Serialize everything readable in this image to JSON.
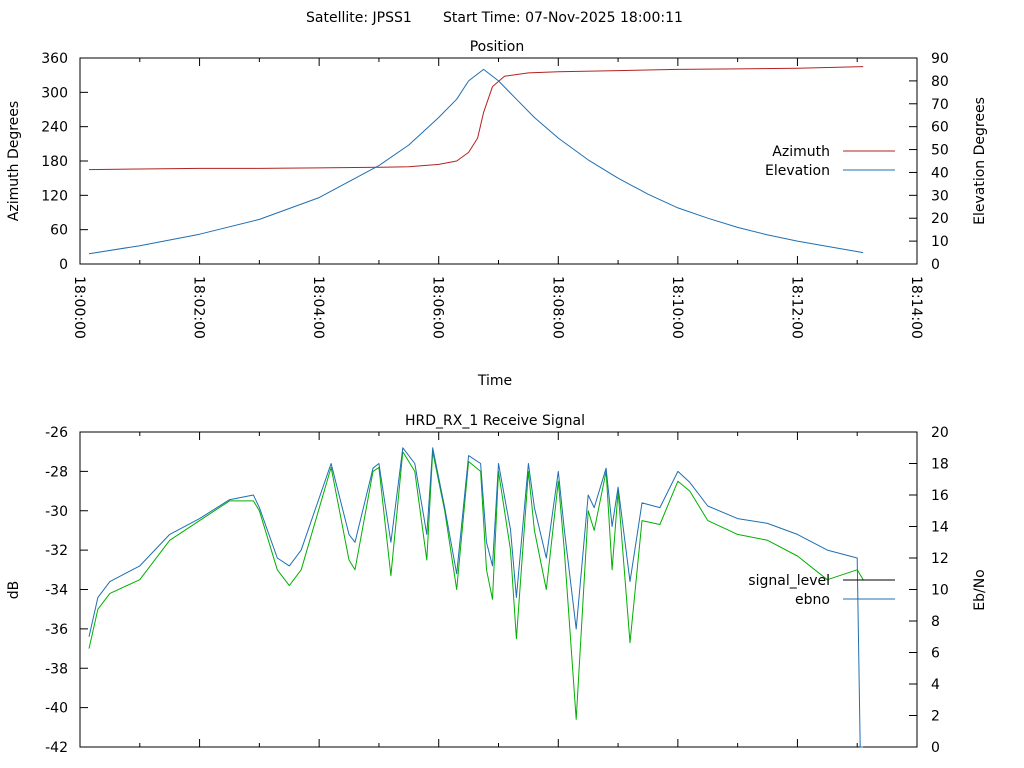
{
  "header": {
    "satellite_label": "Satellite: JPSS1",
    "start_time_label": "Start Time: 07-Nov-2025 18:00:11"
  },
  "colors": {
    "azimuth": "#b22222",
    "elevation": "#1f6fb2",
    "signal_level": "#00b000",
    "ebno": "#1f6fb2",
    "axis": "#000000"
  },
  "chart_data": [
    {
      "type": "line",
      "title": "Position",
      "xlabel": "Time",
      "ylabel": "Azimuth Degrees",
      "y2label": "Elevation Degrees",
      "xlim_minutes": [
        0,
        14
      ],
      "ylim": [
        0,
        360
      ],
      "y2lim": [
        0,
        90
      ],
      "x_tick_labels": [
        "18:00:00",
        "18:02:00",
        "18:04:00",
        "18:06:00",
        "18:08:00",
        "18:10:00",
        "18:12:00",
        "18:14:00"
      ],
      "y_tick_labels": [
        "0",
        "60",
        "120",
        "180",
        "240",
        "300",
        "360"
      ],
      "y2_tick_labels": [
        "0",
        "10",
        "20",
        "30",
        "40",
        "50",
        "60",
        "70",
        "80",
        "90"
      ],
      "legend_position": "right",
      "series": [
        {
          "name": "Azimuth",
          "axis": "y",
          "x": [
            0.15,
            1,
            2,
            3,
            4,
            5,
            5.5,
            6,
            6.3,
            6.5,
            6.65,
            6.75,
            6.9,
            7.1,
            7.5,
            8,
            9,
            10,
            11,
            12,
            13.1
          ],
          "values": [
            165,
            166,
            167,
            167,
            168,
            169,
            170,
            174,
            180,
            195,
            220,
            265,
            310,
            328,
            334,
            336,
            338,
            340,
            341,
            342,
            345
          ]
        },
        {
          "name": "Elevation",
          "axis": "y2",
          "x": [
            0.15,
            1,
            2,
            3,
            4,
            5,
            5.5,
            6,
            6.3,
            6.5,
            6.75,
            7,
            7.3,
            7.6,
            8,
            8.5,
            9,
            9.5,
            10,
            10.5,
            11,
            11.5,
            12,
            12.5,
            13.1
          ],
          "values": [
            4.5,
            8,
            13,
            19.5,
            29,
            43,
            52,
            64,
            72,
            80,
            85,
            80,
            72,
            64,
            55,
            45.5,
            37.5,
            30.5,
            24.5,
            20,
            16,
            12.7,
            10,
            7.7,
            5
          ]
        }
      ]
    },
    {
      "type": "line",
      "title": "HRD_RX_1 Receive Signal",
      "xlabel": "",
      "ylabel": "dB",
      "y2label": "Eb/No",
      "xlim_minutes": [
        0,
        14
      ],
      "ylim": [
        -42,
        -26
      ],
      "y2lim": [
        0,
        20
      ],
      "y_tick_labels": [
        "-42",
        "-40",
        "-38",
        "-36",
        "-34",
        "-32",
        "-30",
        "-28",
        "-26"
      ],
      "y2_tick_labels": [
        "0",
        "2",
        "4",
        "6",
        "8",
        "10",
        "12",
        "14",
        "16",
        "18",
        "20"
      ],
      "legend_position": "right",
      "series": [
        {
          "name": "signal_level",
          "axis": "y",
          "x": [
            0.15,
            0.3,
            0.5,
            1,
            1.5,
            2,
            2.5,
            2.9,
            3,
            3.3,
            3.5,
            3.7,
            4.2,
            4.5,
            4.6,
            4.9,
            5,
            5.2,
            5.4,
            5.6,
            5.8,
            5.9,
            6.1,
            6.3,
            6.5,
            6.7,
            6.8,
            6.9,
            7,
            7.2,
            7.3,
            7.5,
            7.6,
            7.8,
            8,
            8.1,
            8.3,
            8.5,
            8.6,
            8.8,
            8.9,
            9,
            9.2,
            9.4,
            9.7,
            10,
            10.2,
            10.5,
            11,
            11.5,
            12,
            12.5,
            13,
            13.1
          ],
          "values": [
            -37,
            -35,
            -34.2,
            -33.5,
            -31.5,
            -30.5,
            -29.5,
            -29.5,
            -30,
            -33,
            -33.8,
            -33,
            -27.8,
            -32.5,
            -33,
            -28,
            -27.8,
            -33.3,
            -27,
            -28,
            -32.5,
            -27,
            -30,
            -34,
            -27.5,
            -28,
            -33,
            -34.5,
            -28,
            -32,
            -36.5,
            -28,
            -31,
            -34,
            -28.5,
            -32,
            -40.6,
            -30,
            -31,
            -28,
            -33,
            -29,
            -36.7,
            -30.5,
            -30.7,
            -28.5,
            -29,
            -30.5,
            -31.2,
            -31.5,
            -32.3,
            -33.5,
            -33,
            -33.5
          ]
        },
        {
          "name": "ebno",
          "axis": "y2",
          "x": [
            0.15,
            0.3,
            0.5,
            1,
            1.5,
            2,
            2.5,
            2.9,
            3,
            3.3,
            3.5,
            3.7,
            4.2,
            4.5,
            4.6,
            4.9,
            5,
            5.2,
            5.4,
            5.6,
            5.8,
            5.9,
            6.1,
            6.3,
            6.5,
            6.7,
            6.8,
            6.9,
            7,
            7.2,
            7.3,
            7.5,
            7.6,
            7.8,
            8,
            8.1,
            8.3,
            8.5,
            8.6,
            8.8,
            8.9,
            9,
            9.2,
            9.4,
            9.7,
            10,
            10.2,
            10.5,
            11,
            11.5,
            12,
            12.5,
            13,
            13.05,
            13.1
          ],
          "values": [
            7,
            9.5,
            10.5,
            11.5,
            13.5,
            14.5,
            15.7,
            16,
            15.2,
            12,
            11.5,
            12.5,
            18,
            13.5,
            13,
            17.7,
            18,
            13,
            19,
            18,
            13.5,
            19,
            15.2,
            11,
            18.5,
            18,
            13,
            11.5,
            18,
            13.8,
            9.5,
            18,
            15.2,
            12,
            17.5,
            13.8,
            7.5,
            16,
            15.2,
            17.7,
            14,
            16.5,
            10.5,
            15.5,
            15.2,
            17.5,
            16.8,
            15.3,
            14.5,
            14.2,
            13.5,
            12.5,
            12,
            0,
            0
          ]
        }
      ]
    }
  ]
}
